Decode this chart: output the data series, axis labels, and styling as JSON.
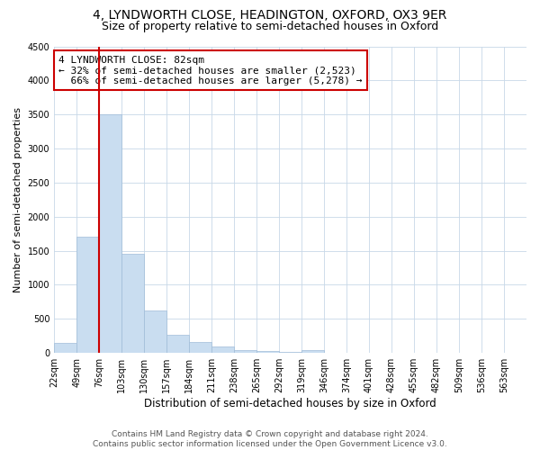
{
  "title": "4, LYNDWORTH CLOSE, HEADINGTON, OXFORD, OX3 9ER",
  "subtitle": "Size of property relative to semi-detached houses in Oxford",
  "xlabel": "Distribution of semi-detached houses by size in Oxford",
  "ylabel": "Number of semi-detached properties",
  "bar_values": [
    150,
    1700,
    3500,
    1450,
    620,
    270,
    165,
    90,
    45,
    30,
    10,
    40,
    0,
    0,
    0,
    0,
    0,
    0,
    0,
    0
  ],
  "bin_labels": [
    "22sqm",
    "49sqm",
    "76sqm",
    "103sqm",
    "130sqm",
    "157sqm",
    "184sqm",
    "211sqm",
    "238sqm",
    "265sqm",
    "292sqm",
    "319sqm",
    "346sqm",
    "374sqm",
    "401sqm",
    "428sqm",
    "455sqm",
    "482sqm",
    "509sqm",
    "536sqm",
    "563sqm"
  ],
  "bar_color": "#c9ddf0",
  "bar_edge_color": "#a0bcd8",
  "marker_line_color": "#cc0000",
  "annotation_box_edge_color": "#cc0000",
  "annotation_text_line1": "4 LYNDWORTH CLOSE: 82sqm",
  "annotation_text_line2": "← 32% of semi-detached houses are smaller (2,523)",
  "annotation_text_line3": "  66% of semi-detached houses are larger (5,278) →",
  "ylim": [
    0,
    4500
  ],
  "yticks": [
    0,
    500,
    1000,
    1500,
    2000,
    2500,
    3000,
    3500,
    4000,
    4500
  ],
  "footer_line1": "Contains HM Land Registry data © Crown copyright and database right 2024.",
  "footer_line2": "Contains public sector information licensed under the Open Government Licence v3.0.",
  "background_color": "#ffffff",
  "grid_color": "#c8d8e8",
  "title_fontsize": 10,
  "subtitle_fontsize": 9,
  "xlabel_fontsize": 8.5,
  "ylabel_fontsize": 8,
  "tick_fontsize": 7,
  "annotation_fontsize": 8,
  "footer_fontsize": 6.5
}
